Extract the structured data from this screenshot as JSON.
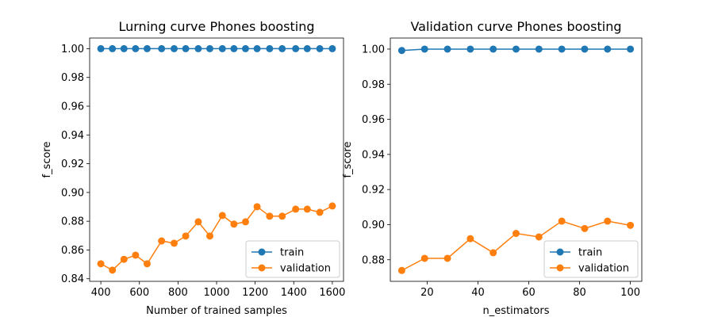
{
  "colors": {
    "train": "#1f77b4",
    "validation": "#ff7f0e"
  },
  "chart_data": [
    {
      "type": "line",
      "title": "Lurning curve Phones boosting",
      "xlabel": "Number of trained samples",
      "ylabel": "f_score",
      "xlim": [
        342,
        1658
      ],
      "ylim": [
        0.8382,
        1.0074
      ],
      "xticks": [
        400,
        600,
        800,
        1000,
        1200,
        1400,
        1600
      ],
      "xtick_labels": [
        "400",
        "600",
        "800",
        "1000",
        "1200",
        "1400",
        "1600"
      ],
      "yticks": [
        0.84,
        0.86,
        0.88,
        0.9,
        0.92,
        0.94,
        0.96,
        0.98,
        1.0
      ],
      "ytick_labels": [
        "0.84",
        "0.86",
        "0.88",
        "0.90",
        "0.92",
        "0.94",
        "0.96",
        "0.98",
        "1.00"
      ],
      "legend": "lower-right",
      "x": [
        400,
        460,
        520,
        580,
        640,
        715,
        780,
        840,
        905,
        965,
        1030,
        1090,
        1150,
        1210,
        1275,
        1340,
        1410,
        1470,
        1535,
        1600
      ],
      "series": [
        {
          "name": "train",
          "values": [
            1,
            1,
            1,
            1,
            1,
            1,
            1,
            1,
            1,
            1,
            1,
            1,
            1,
            1,
            1,
            1,
            1,
            1,
            1,
            1
          ]
        },
        {
          "name": "validation",
          "values": [
            0.8504,
            0.846,
            0.8535,
            0.8564,
            0.8504,
            0.8663,
            0.8647,
            0.8697,
            0.8796,
            0.8697,
            0.884,
            0.878,
            0.8796,
            0.8901,
            0.8835,
            0.8835,
            0.8884,
            0.8884,
            0.8862,
            0.8906
          ]
        }
      ]
    },
    {
      "type": "line",
      "title": "Validation curve Phones boosting",
      "xlabel": "n_estimators",
      "ylabel": "f_score",
      "xlim": [
        5.5,
        104.5
      ],
      "ylim": [
        0.8677,
        1.0063
      ],
      "xticks": [
        20,
        40,
        60,
        80,
        100
      ],
      "xtick_labels": [
        "20",
        "40",
        "60",
        "80",
        "100"
      ],
      "yticks": [
        0.88,
        0.9,
        0.92,
        0.94,
        0.96,
        0.98,
        1.0
      ],
      "ytick_labels": [
        "0.88",
        "0.90",
        "0.92",
        "0.94",
        "0.96",
        "0.98",
        "1.00"
      ],
      "legend": "lower-right",
      "x": [
        10,
        19,
        28,
        37,
        46,
        55,
        64,
        73,
        82,
        91,
        100
      ],
      "series": [
        {
          "name": "train",
          "values": [
            0.9992,
            1,
            1,
            1,
            1,
            1,
            1,
            1,
            1,
            1,
            1
          ]
        },
        {
          "name": "validation",
          "values": [
            0.8739,
            0.8808,
            0.8808,
            0.892,
            0.884,
            0.895,
            0.893,
            0.902,
            0.8978,
            0.902,
            0.8996
          ]
        }
      ]
    }
  ]
}
